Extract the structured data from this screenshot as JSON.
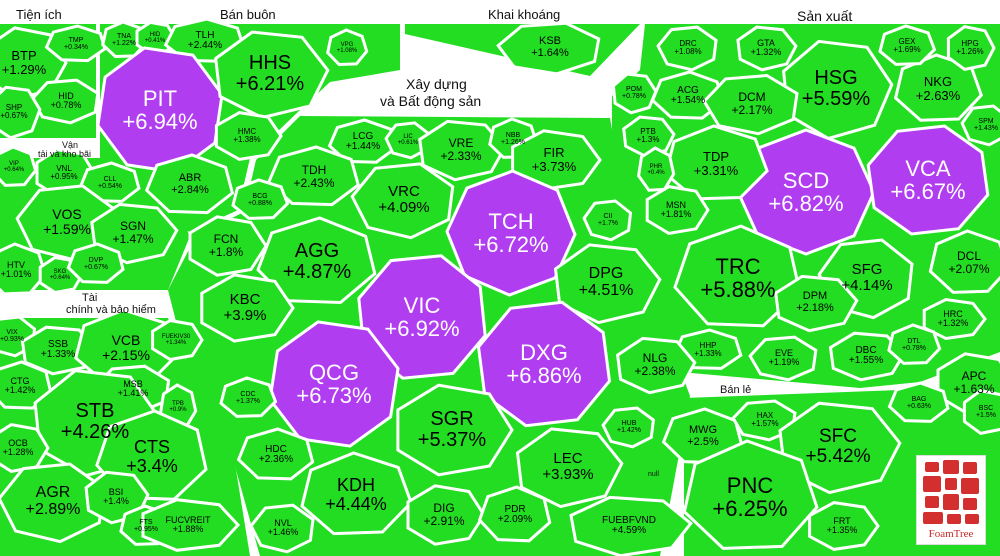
{
  "groups": {
    "tien_ich": "Tiện ích",
    "ban_buon": "Bán buôn",
    "khai_khoang": "Khai khoáng",
    "san_xuat": "Sản xuất",
    "xay_dung_line1": "Xây dựng",
    "xay_dung_line2": "và Bất động sản",
    "van_tai_line1": "Vận",
    "van_tai_line2": "tải và kho bãi",
    "tai_chinh_line1": "Tài",
    "tai_chinh_line2": "chính và bảo hiểm",
    "ban_le": "Bán lẻ",
    "null_label": "null"
  },
  "colors": {
    "green": "#22dd22",
    "purple": "#b13df0",
    "gap": "#ffffff"
  },
  "logo_text": "FoamTree",
  "stocks": [
    {
      "t": "BTP",
      "p": "+1.29%"
    },
    {
      "t": "TMP",
      "p": "+0.34%"
    },
    {
      "t": "HID",
      "p": "+0.78%"
    },
    {
      "t": "SHP",
      "p": "+0.67%"
    },
    {
      "t": "TNA",
      "p": "+1.22%"
    },
    {
      "t": "HID",
      "p": "+0.41%"
    },
    {
      "t": "TLH",
      "p": "+2.44%"
    },
    {
      "t": "PIT",
      "p": "+6.94%"
    },
    {
      "t": "HHS",
      "p": "+6.21%"
    },
    {
      "t": "VPG",
      "p": "+1.08%"
    },
    {
      "t": "HMC",
      "p": "+1.38%"
    },
    {
      "t": "ABR",
      "p": "+2.84%"
    },
    {
      "t": "KSB",
      "p": "+1.64%"
    },
    {
      "t": "HSG",
      "p": "+5.59%"
    },
    {
      "t": "NKG",
      "p": "+2.63%"
    },
    {
      "t": "SCD",
      "p": "+6.82%"
    },
    {
      "t": "VCA",
      "p": "+6.67%"
    },
    {
      "t": "DRC",
      "p": "+1.08%"
    },
    {
      "t": "GTA",
      "p": "+1.32%"
    },
    {
      "t": "GEX",
      "p": "+1.69%"
    },
    {
      "t": "HPG",
      "p": "+1.26%"
    },
    {
      "t": "ACG",
      "p": "+1.54%"
    },
    {
      "t": "DCM",
      "p": "+2.17%"
    },
    {
      "t": "PTB",
      "p": "+1.3%"
    },
    {
      "t": "TDP",
      "p": "+3.31%"
    },
    {
      "t": "MSN",
      "p": "+1.81%"
    },
    {
      "t": "TRC",
      "p": "+5.88%"
    },
    {
      "t": "SFG",
      "p": "+4.14%"
    },
    {
      "t": "DPM",
      "p": "+2.18%"
    },
    {
      "t": "DCL",
      "p": "+2.07%"
    },
    {
      "t": "HRC",
      "p": "+1.32%"
    },
    {
      "t": "HHP",
      "p": "+1.33%"
    },
    {
      "t": "EVE",
      "p": "+1.19%"
    },
    {
      "t": "DBC",
      "p": "+1.55%"
    },
    {
      "t": "DTL",
      "p": "+0.78%"
    },
    {
      "t": "APC",
      "p": "+1.63%"
    },
    {
      "t": "BAG",
      "p": "+0.63%"
    },
    {
      "t": "SPM",
      "p": "+1.43%"
    },
    {
      "t": "POM",
      "p": "+0.78%"
    },
    {
      "t": "PHR",
      "p": "+0.4%"
    },
    {
      "t": "BSC",
      "p": "+1.5%"
    },
    {
      "t": "LCG",
      "p": "+1.44%"
    },
    {
      "t": "LIC",
      "p": "+0.61%"
    },
    {
      "t": "VRE",
      "p": "+2.33%"
    },
    {
      "t": "NBB",
      "p": "+1.26%"
    },
    {
      "t": "FIR",
      "p": "+3.73%"
    },
    {
      "t": "TDH",
      "p": "+2.43%"
    },
    {
      "t": "VRC",
      "p": "+4.09%"
    },
    {
      "t": "TCH",
      "p": "+6.72%"
    },
    {
      "t": "BCG",
      "p": "+0.88%"
    },
    {
      "t": "FCN",
      "p": "+1.8%"
    },
    {
      "t": "AGG",
      "p": "+4.87%"
    },
    {
      "t": "CII",
      "p": "+1.7%"
    },
    {
      "t": "DPG",
      "p": "+4.51%"
    },
    {
      "t": "VIC",
      "p": "+6.92%"
    },
    {
      "t": "KBC",
      "p": "+3.9%"
    },
    {
      "t": "DXG",
      "p": "+6.86%"
    },
    {
      "t": "QCG",
      "p": "+6.73%"
    },
    {
      "t": "NLG",
      "p": "+2.38%"
    },
    {
      "t": "CDC",
      "p": "+1.37%"
    },
    {
      "t": "SGR",
      "p": "+5.37%"
    },
    {
      "t": "HDC",
      "p": "+2.36%"
    },
    {
      "t": "HUB",
      "p": "+1.42%"
    },
    {
      "t": "LEC",
      "p": "+3.93%"
    },
    {
      "t": "KDH",
      "p": "+4.44%"
    },
    {
      "t": "DIG",
      "p": "+2.91%"
    },
    {
      "t": "PDR",
      "p": "+2.09%"
    },
    {
      "t": "NVL",
      "p": "+1.46%"
    },
    {
      "t": "FUEBFVND",
      "p": "+4.59%"
    },
    {
      "t": "VIP",
      "p": "+0.64%"
    },
    {
      "t": "VNL",
      "p": "+0.95%"
    },
    {
      "t": "CLL",
      "p": "+0.54%"
    },
    {
      "t": "VOS",
      "p": "+1.59%"
    },
    {
      "t": "SGN",
      "p": "+1.47%"
    },
    {
      "t": "HTV",
      "p": "+1.01%"
    },
    {
      "t": "SKG",
      "p": "+0.64%"
    },
    {
      "t": "DVP",
      "p": "+0.67%"
    },
    {
      "t": "VIX",
      "p": "+0.93%"
    },
    {
      "t": "SSB",
      "p": "+1.33%"
    },
    {
      "t": "VCB",
      "p": "+2.15%"
    },
    {
      "t": "FUEKIV30",
      "p": "+1.34%"
    },
    {
      "t": "CTG",
      "p": "+1.42%"
    },
    {
      "t": "MSB",
      "p": "+1.41%"
    },
    {
      "t": "STB",
      "p": "+4.26%"
    },
    {
      "t": "TPB",
      "p": "+0.9%"
    },
    {
      "t": "OCB",
      "p": "+1.28%"
    },
    {
      "t": "CTS",
      "p": "+3.4%"
    },
    {
      "t": "AGR",
      "p": "+2.89%"
    },
    {
      "t": "BSI",
      "p": "+1.4%"
    },
    {
      "t": "FTS",
      "p": "+0.95%"
    },
    {
      "t": "FUCVREIT",
      "p": "+1.88%"
    },
    {
      "t": "MWG",
      "p": "+2.5%"
    },
    {
      "t": "HAX",
      "p": "+1.57%"
    },
    {
      "t": "SFC",
      "p": "+5.42%"
    },
    {
      "t": "PNC",
      "p": "+6.25%"
    },
    {
      "t": "FRT",
      "p": "+1.35%"
    }
  ]
}
